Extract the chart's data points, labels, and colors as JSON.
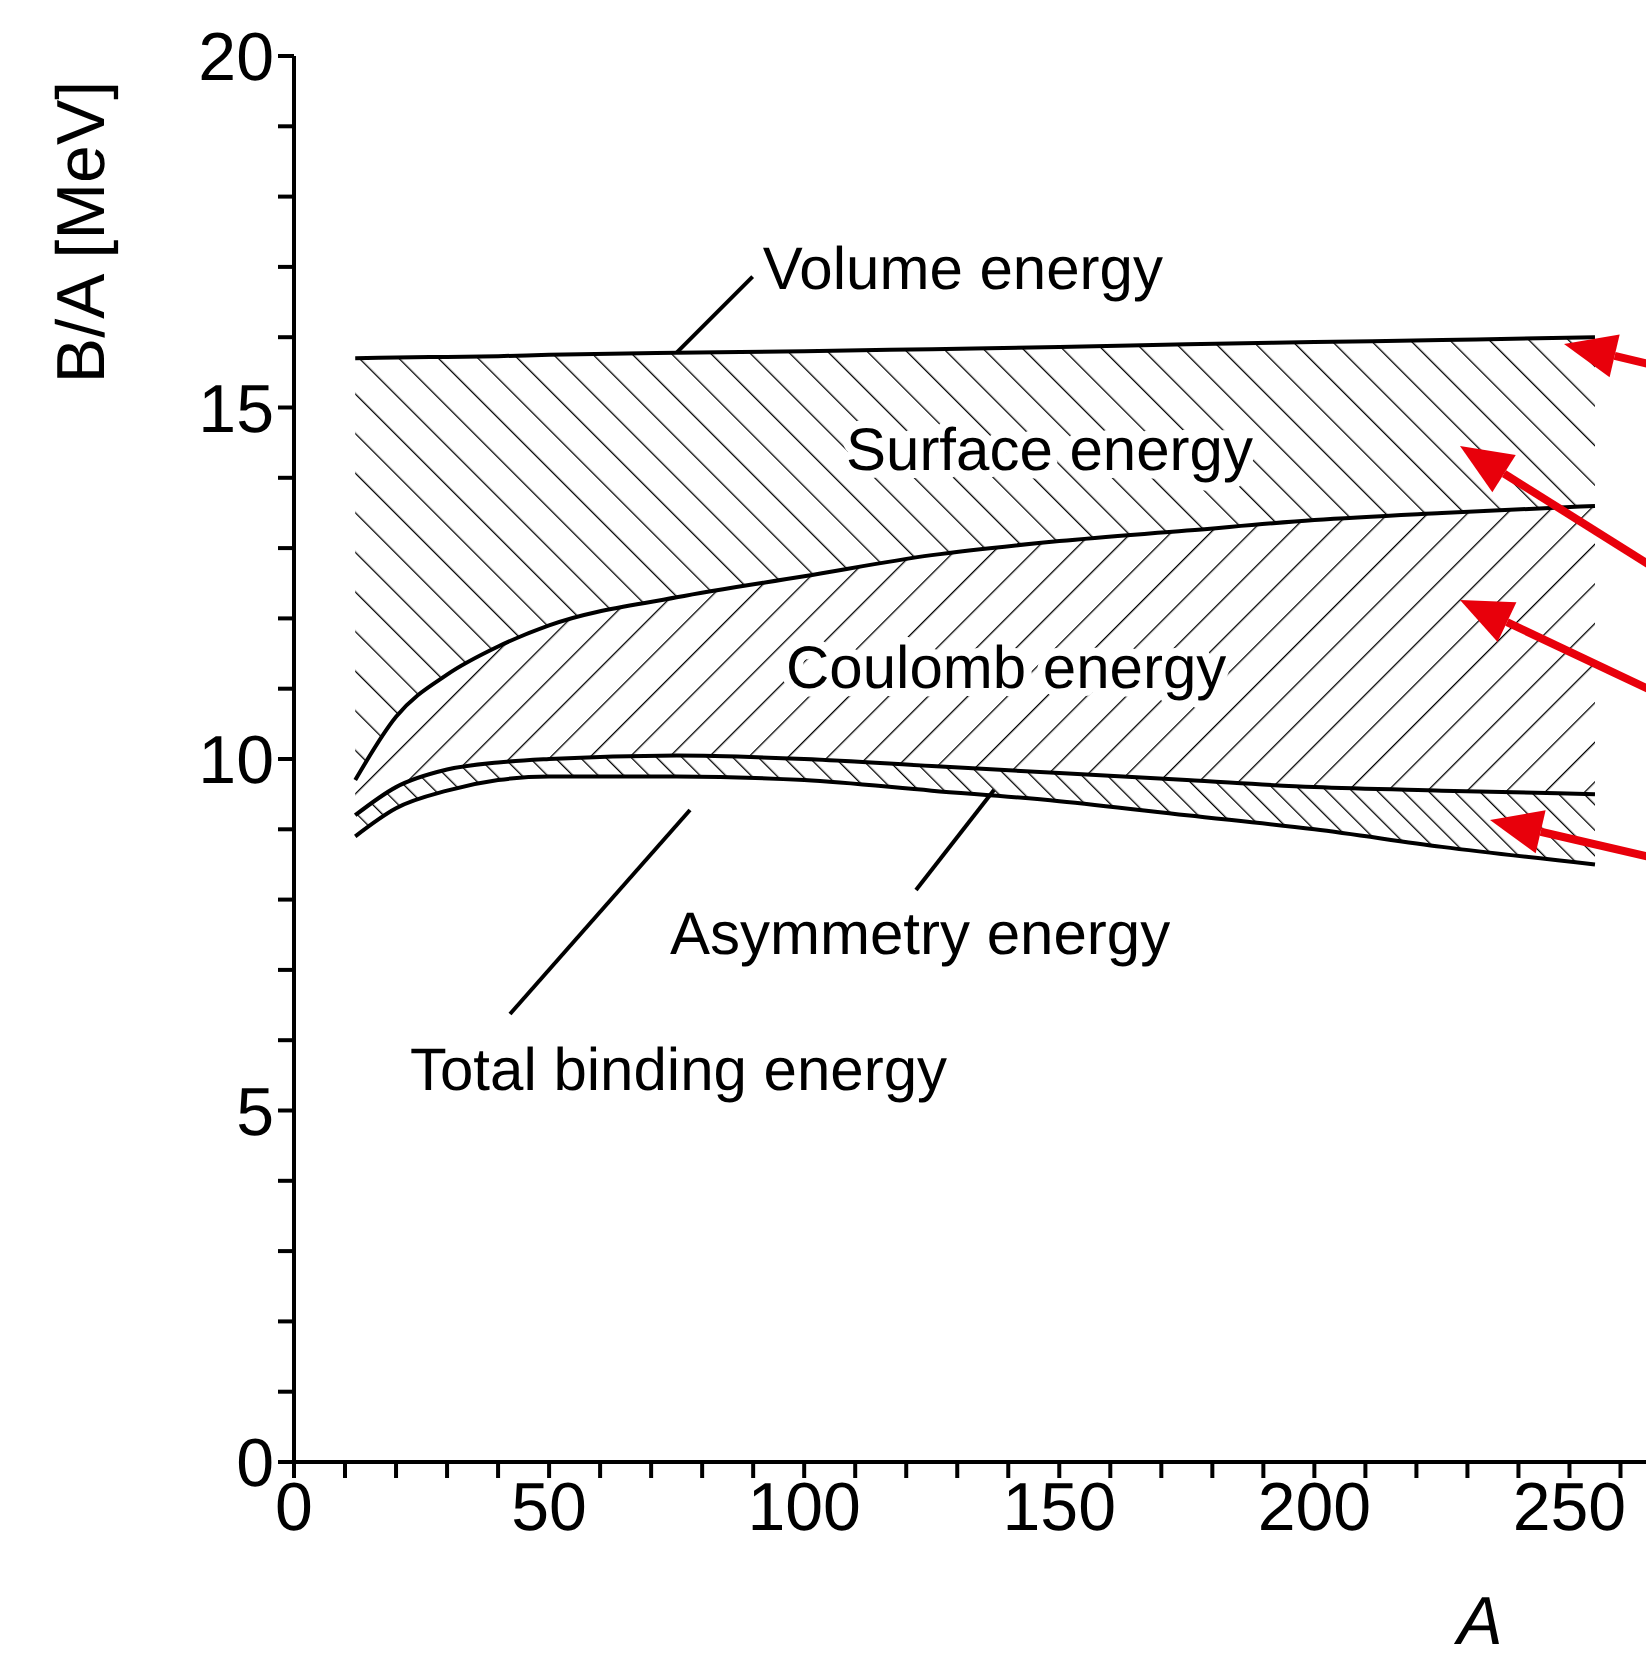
{
  "chart_data": {
    "type": "area",
    "stacked": true,
    "xlabel": "A",
    "ylabel": "B/A [MeV]",
    "x": [
      12,
      20,
      30,
      40,
      50,
      75,
      100,
      125,
      150,
      175,
      200,
      225,
      255
    ],
    "series": [
      {
        "name": "Total binding energy",
        "color": "#000000",
        "values": [
          8.9,
          9.3,
          9.55,
          9.7,
          9.75,
          9.75,
          9.7,
          9.55,
          9.4,
          9.2,
          9.0,
          8.75,
          8.5
        ]
      },
      {
        "name": "Asymmetry energy",
        "color": "#000000",
        "values": [
          0.3,
          0.3,
          0.3,
          0.25,
          0.25,
          0.3,
          0.3,
          0.35,
          0.4,
          0.5,
          0.6,
          0.8,
          1.0
        ]
      },
      {
        "name": "Coulomb energy",
        "color": "#000000",
        "values": [
          0.5,
          1.0,
          1.35,
          1.65,
          1.9,
          2.25,
          2.6,
          3.0,
          3.3,
          3.55,
          3.8,
          3.95,
          4.1
        ]
      },
      {
        "name": "Surface energy",
        "color": "#000000",
        "values": [
          6.0,
          5.11,
          4.52,
          4.13,
          3.85,
          3.48,
          3.2,
          2.93,
          2.76,
          2.65,
          2.53,
          2.46,
          2.4
        ]
      }
    ],
    "annotations": [
      {
        "text": "Volume energy",
        "x": 75,
        "y": 15.78
      }
    ],
    "xlim": [
      0,
      265
    ],
    "xticks": [
      0,
      {
        "value": 10,
        "label": null
      },
      {
        "value": 20,
        "label": null
      },
      {
        "value": 30,
        "label": null
      },
      {
        "value": 40,
        "label": null
      },
      50,
      {
        "value": 60,
        "label": null
      },
      {
        "value": 70,
        "label": null
      },
      {
        "value": 80,
        "label": null
      },
      {
        "value": 90,
        "label": null
      },
      100,
      {
        "value": 110,
        "label": null
      },
      {
        "value": 120,
        "label": null
      },
      {
        "value": 130,
        "label": null
      },
      {
        "value": 140,
        "label": null
      },
      150,
      {
        "value": 160,
        "label": null
      },
      {
        "value": 170,
        "label": null
      },
      {
        "value": 180,
        "label": null
      },
      {
        "value": 190,
        "label": null
      },
      200,
      {
        "value": 210,
        "label": null
      },
      {
        "value": 220,
        "label": null
      },
      {
        "value": 230,
        "label": null
      },
      {
        "value": 240,
        "label": null
      },
      250,
      {
        "value": 260,
        "label": null
      }
    ],
    "ylim": [
      0,
      20
    ],
    "yticks": [
      0,
      {
        "value": 1,
        "label": null
      },
      {
        "value": 2,
        "label": null
      },
      {
        "value": 3,
        "label": null
      },
      {
        "value": 4,
        "label": null
      },
      5,
      {
        "value": 6,
        "label": null
      },
      {
        "value": 7,
        "label": null
      },
      {
        "value": 8,
        "label": null
      },
      {
        "value": 9,
        "label": null
      },
      10,
      {
        "value": 11,
        "label": null
      },
      {
        "value": 12,
        "label": null
      },
      {
        "value": 13,
        "label": null
      },
      {
        "value": 14,
        "label": null
      },
      15,
      {
        "value": 16,
        "label": null
      },
      {
        "value": 17,
        "label": null
      },
      {
        "value": 18,
        "label": null
      },
      {
        "value": 19,
        "label": null
      },
      20
    ]
  }
}
